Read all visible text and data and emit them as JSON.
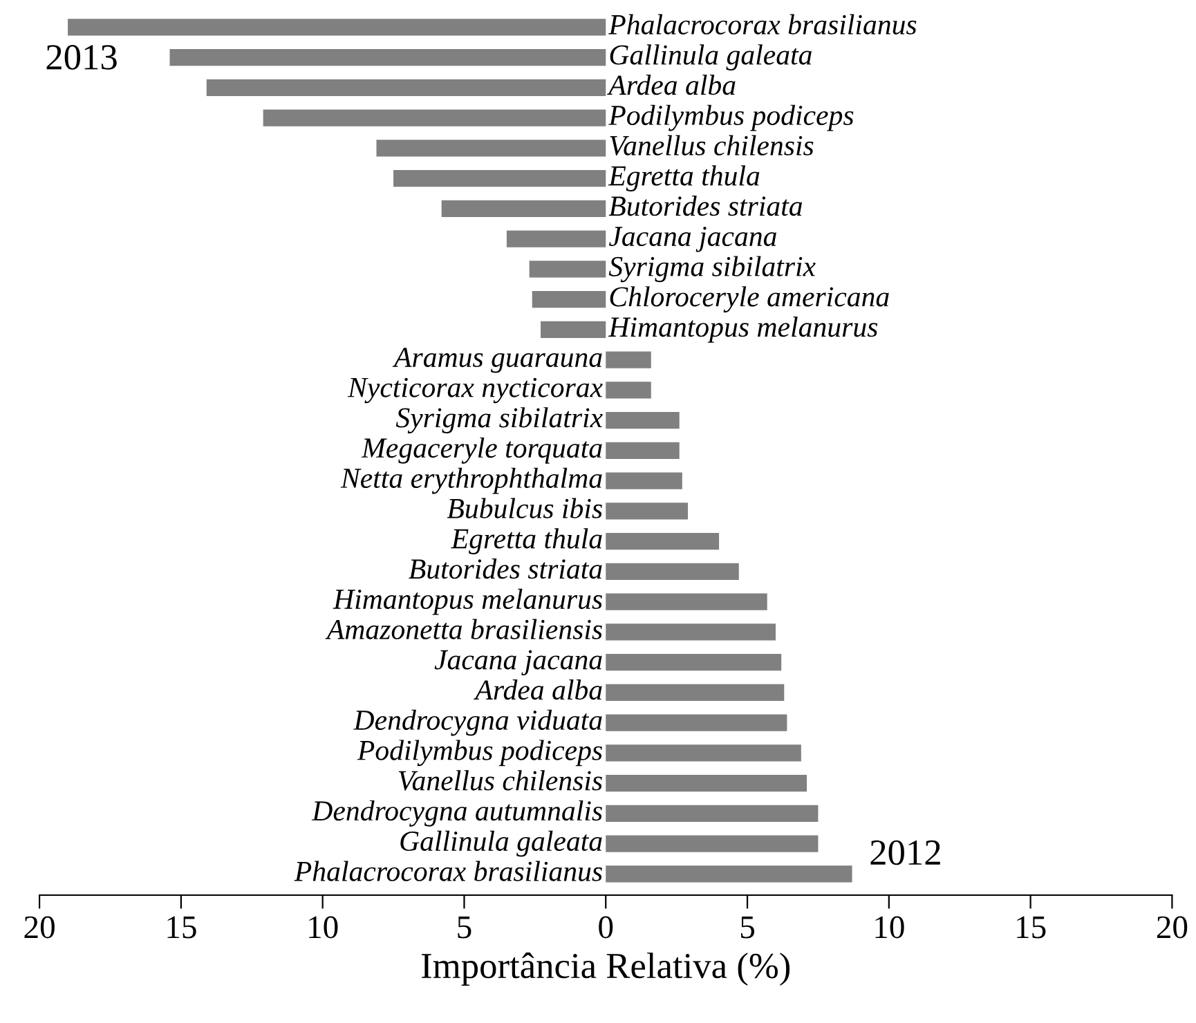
{
  "chart_data": {
    "type": "bar",
    "orientation": "horizontal",
    "xlabel": "Importância Relativa (%)",
    "categories": [
      "Phalacrocorax brasilianus",
      "Gallinula galeata",
      "Ardea alba",
      "Podilymbus podiceps",
      "Vanellus chilensis",
      "Egretta thula",
      "Butorides striata",
      "Jacana jacana",
      "Syrigma sibilatrix",
      "Chloroceryle americana",
      "Himantopus melanurus",
      "Aramus guarauna",
      "Nycticorax nycticorax",
      "Syrigma sibilatrix",
      "Megaceryle torquata",
      "Netta erythrophthalma",
      "Bubulcus ibis",
      "Egretta thula",
      "Butorides striata",
      "Himantopus melanurus",
      "Amazonetta brasiliensis",
      "Jacana jacana",
      "Ardea alba",
      "Dendrocygna viduata",
      "Podilymbus podiceps",
      "Vanellus chilensis",
      "Dendrocygna autumnalis",
      "Gallinula galeata",
      "Phalacrocorax brasilianus"
    ],
    "series": [
      {
        "name": "2013",
        "color": "#808080",
        "values": [
          -19.0,
          -15.4,
          -14.1,
          -12.1,
          -8.1,
          -7.5,
          -5.8,
          -3.5,
          -2.7,
          -2.6,
          -2.3,
          null,
          null,
          null,
          null,
          null,
          null,
          null,
          null,
          null,
          null,
          null,
          null,
          null,
          null,
          null,
          null,
          null,
          null
        ]
      },
      {
        "name": "2012",
        "color": "#808080",
        "values": [
          null,
          null,
          null,
          null,
          null,
          null,
          null,
          null,
          null,
          null,
          null,
          1.6,
          1.6,
          2.6,
          2.6,
          2.7,
          2.9,
          4.0,
          4.7,
          5.7,
          6.0,
          6.2,
          6.3,
          6.4,
          6.9,
          7.1,
          7.5,
          7.5,
          8.7
        ]
      }
    ],
    "xlim": [
      -20,
      20
    ],
    "xticks": [
      {
        "value": -20,
        "label": "20"
      },
      {
        "value": -15,
        "label": "15"
      },
      {
        "value": -10,
        "label": "10"
      },
      {
        "value": -5,
        "label": "5"
      },
      0,
      5,
      10,
      15,
      20
    ],
    "tick_labels": "x",
    "grid": false,
    "legend": false
  }
}
